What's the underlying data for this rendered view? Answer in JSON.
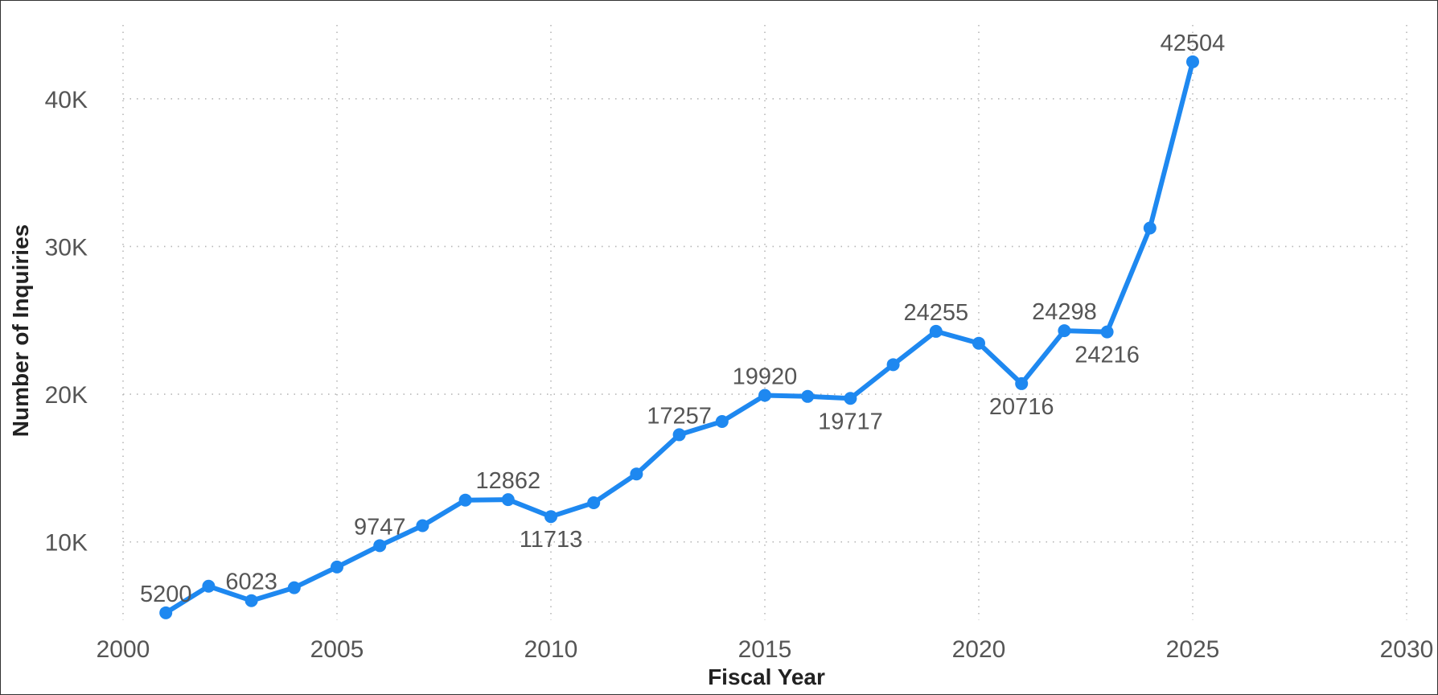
{
  "chart_data": {
    "type": "line",
    "title": "",
    "xlabel": "Fiscal Year",
    "ylabel": "Number of Inquiries",
    "xlim": [
      2000,
      2030
    ],
    "ylim": [
      4700,
      45000
    ],
    "x_ticks": [
      2000,
      2005,
      2010,
      2015,
      2020,
      2025,
      2030
    ],
    "x_tick_labels": [
      "2000",
      "2005",
      "2010",
      "2015",
      "2020",
      "2025",
      "2030"
    ],
    "y_ticks": [
      10000,
      20000,
      30000,
      40000
    ],
    "y_tick_labels": [
      "10K",
      "20K",
      "30K",
      "40K"
    ],
    "grid": true,
    "legend": "none",
    "colors": {
      "series": "#1e88f0",
      "text": "#555555",
      "axis_title": "#222222"
    },
    "series": [
      {
        "x": [
          2001,
          2002,
          2003,
          2004,
          2005,
          2006,
          2007,
          2008,
          2009,
          2010,
          2011,
          2012,
          2013,
          2014,
          2015,
          2016,
          2017,
          2018,
          2019,
          2020,
          2021,
          2022,
          2023,
          2024,
          2025
        ],
        "values": [
          5200,
          7000,
          6023,
          6900,
          8300,
          9747,
          11100,
          12830,
          12862,
          11713,
          12650,
          14600,
          17257,
          18150,
          19920,
          19850,
          19717,
          22000,
          24255,
          23450,
          20716,
          24298,
          24216,
          31250,
          42504
        ]
      }
    ],
    "annotations": [
      {
        "x": 2001,
        "value": 5200,
        "text": "5200",
        "position": "above"
      },
      {
        "x": 2003,
        "value": 6023,
        "text": "6023",
        "position": "above"
      },
      {
        "x": 2006,
        "value": 9747,
        "text": "9747",
        "position": "above"
      },
      {
        "x": 2009,
        "value": 12862,
        "text": "12862",
        "position": "above"
      },
      {
        "x": 2010,
        "value": 11713,
        "text": "11713",
        "position": "below"
      },
      {
        "x": 2013,
        "value": 17257,
        "text": "17257",
        "position": "above"
      },
      {
        "x": 2015,
        "value": 19920,
        "text": "19920",
        "position": "above"
      },
      {
        "x": 2017,
        "value": 19717,
        "text": "19717",
        "position": "below"
      },
      {
        "x": 2019,
        "value": 24255,
        "text": "24255",
        "position": "above"
      },
      {
        "x": 2021,
        "value": 20716,
        "text": "20716",
        "position": "below"
      },
      {
        "x": 2022,
        "value": 24298,
        "text": "24298",
        "position": "above"
      },
      {
        "x": 2023,
        "value": 24216,
        "text": "24216",
        "position": "below"
      },
      {
        "x": 2025,
        "value": 42504,
        "text": "42504",
        "position": "above"
      }
    ]
  }
}
